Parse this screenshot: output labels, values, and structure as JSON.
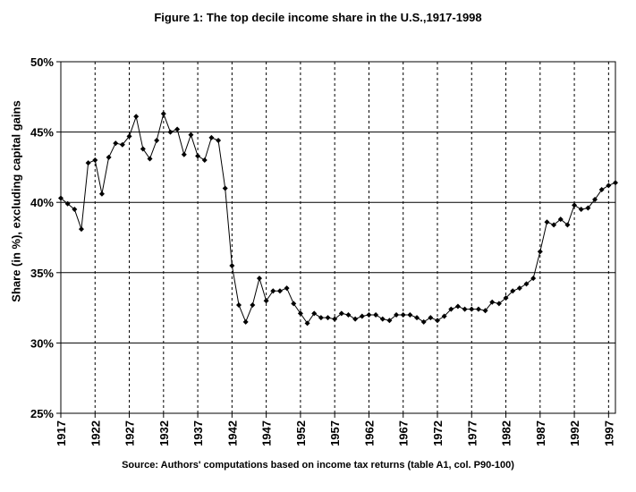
{
  "chart_data": {
    "type": "line",
    "title": "Figure 1: The top decile income share in the U.S.,1917-1998",
    "ylabel": "Share (in %), excluding capital gains",
    "xlabel": "",
    "source": "Source: Authors' computations based on income tax returns (table A1, col. P90-100)",
    "ylim": [
      25,
      50
    ],
    "xlim": [
      1917,
      1998
    ],
    "y_ticks": [
      "25%",
      "30%",
      "35%",
      "40%",
      "45%",
      "50%"
    ],
    "x_ticks": [
      "1917",
      "1922",
      "1927",
      "1932",
      "1937",
      "1942",
      "1947",
      "1952",
      "1957",
      "1962",
      "1967",
      "1972",
      "1977",
      "1982",
      "1987",
      "1992",
      "1997"
    ],
    "grid": "horizontal solid, vertical dotted",
    "marker": "diamond",
    "series": [
      {
        "x": [
          1917,
          1918,
          1919,
          1920,
          1921,
          1922,
          1923,
          1924,
          1925,
          1926,
          1927,
          1928,
          1929,
          1930,
          1931,
          1932,
          1933,
          1934,
          1935,
          1936,
          1937,
          1938,
          1939,
          1940,
          1941,
          1942,
          1943,
          1944,
          1945,
          1946,
          1947,
          1948,
          1949,
          1950,
          1951,
          1952,
          1953,
          1954,
          1955,
          1956,
          1957,
          1958,
          1959,
          1960,
          1961,
          1962,
          1963,
          1964,
          1965,
          1966,
          1967,
          1968,
          1969,
          1970,
          1971,
          1972,
          1973,
          1974,
          1975,
          1976,
          1977,
          1978,
          1979,
          1980,
          1981,
          1982,
          1983,
          1984,
          1985,
          1986,
          1987,
          1988,
          1989,
          1990,
          1991,
          1992,
          1993,
          1994,
          1995,
          1996,
          1997,
          1998
        ],
        "values": [
          40.3,
          39.9,
          39.5,
          38.1,
          42.8,
          43.0,
          40.6,
          43.2,
          44.2,
          44.1,
          44.7,
          46.1,
          43.8,
          43.1,
          44.4,
          46.3,
          45.0,
          45.2,
          43.4,
          44.8,
          43.3,
          43.0,
          44.6,
          44.4,
          41.0,
          35.5,
          32.7,
          31.5,
          32.7,
          34.6,
          33.0,
          33.7,
          33.7,
          33.9,
          32.8,
          32.1,
          31.4,
          32.1,
          31.8,
          31.8,
          31.7,
          32.1,
          32.0,
          31.7,
          31.9,
          32.0,
          32.0,
          31.7,
          31.6,
          32.0,
          32.0,
          32.0,
          31.8,
          31.5,
          31.8,
          31.6,
          31.9,
          32.4,
          32.6,
          32.4,
          32.4,
          32.4,
          32.3,
          32.9,
          32.8,
          33.2,
          33.7,
          33.9,
          34.2,
          34.6,
          36.5,
          38.6,
          38.4,
          38.8,
          38.4,
          39.8,
          39.5,
          39.6,
          40.2,
          40.9,
          41.2,
          41.4
        ]
      }
    ]
  }
}
